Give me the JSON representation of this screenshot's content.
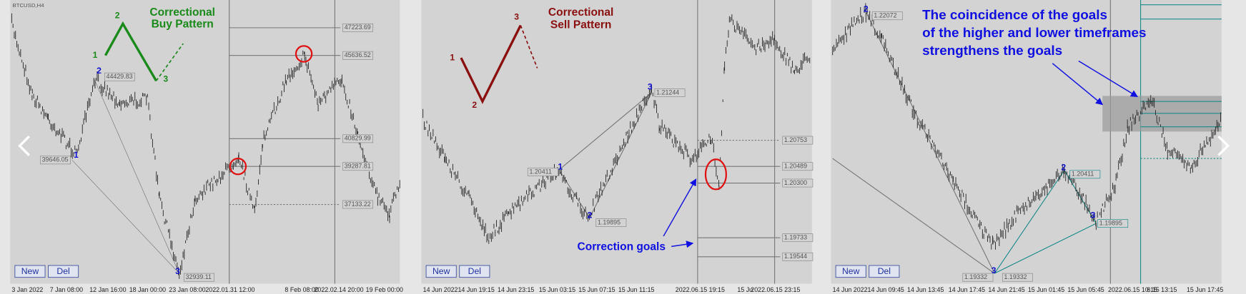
{
  "panels": [
    {
      "symbol": "BTCUSD,H4",
      "title": [
        "Correctional",
        "Buy Pattern"
      ],
      "pattern_points": [
        "1",
        "2",
        "3"
      ],
      "wave_points": [
        "2",
        "1",
        "3"
      ],
      "price_labels": [
        "44429.83",
        "39646.05",
        "32939.11",
        "47223.69",
        "45636.52",
        "40829.99",
        "39287.81",
        "37133.22"
      ],
      "buttons": [
        "New",
        "Del"
      ],
      "time_labels": [
        "3 Jan 2022",
        "7 Jan 08:00",
        "12 Jan 16:00",
        "18 Jan 00:00",
        "23 Jan 08:00",
        "2022.01.31 12:00",
        "8 Feb 08:00",
        "2022.02.14 20:00",
        "19 Feb 00:00"
      ]
    },
    {
      "title": [
        "Correctional",
        "Sell Pattern"
      ],
      "pattern_points": [
        "1",
        "2",
        "3"
      ],
      "wave_points": [
        "1",
        "2",
        "3"
      ],
      "price_labels": [
        "1.20411",
        "1.19895",
        "1.21244",
        "1.20753",
        "1.20489",
        "1.20300",
        "1.19733",
        "1.19544"
      ],
      "annotation": "Correction goals",
      "buttons": [
        "New",
        "Del"
      ],
      "time_labels": [
        "14 Jun 2022",
        "14 Jun 19:15",
        "14 Jun 23:15",
        "15 Jun 03:15",
        "15 Jun 07:15",
        "15 Jun 11:15",
        "2022.06.15 19:15",
        "15 Ju",
        "2022.06.15 23:15"
      ]
    },
    {
      "annotation": [
        "The coincidence of the goals",
        "of the higher and lower timeframes",
        "strengthens the goals"
      ],
      "wave_points": [
        "2",
        "3",
        "2",
        "3"
      ],
      "price_labels": [
        "1.22072",
        "1.19332",
        "1.19332",
        "1.20411",
        "1.19895"
      ],
      "buttons": [
        "New",
        "Del"
      ],
      "time_labels": [
        "14 Jun 2022",
        "14 Jun 09:45",
        "14 Jun 13:45",
        "14 Jun 17:45",
        "14 Jun 21:45",
        "15 Jun 01:45",
        "15 Jun 05:45",
        "2022.06.15 10:15",
        "6.15 13:15",
        "15 Jun 17:45"
      ]
    }
  ]
}
